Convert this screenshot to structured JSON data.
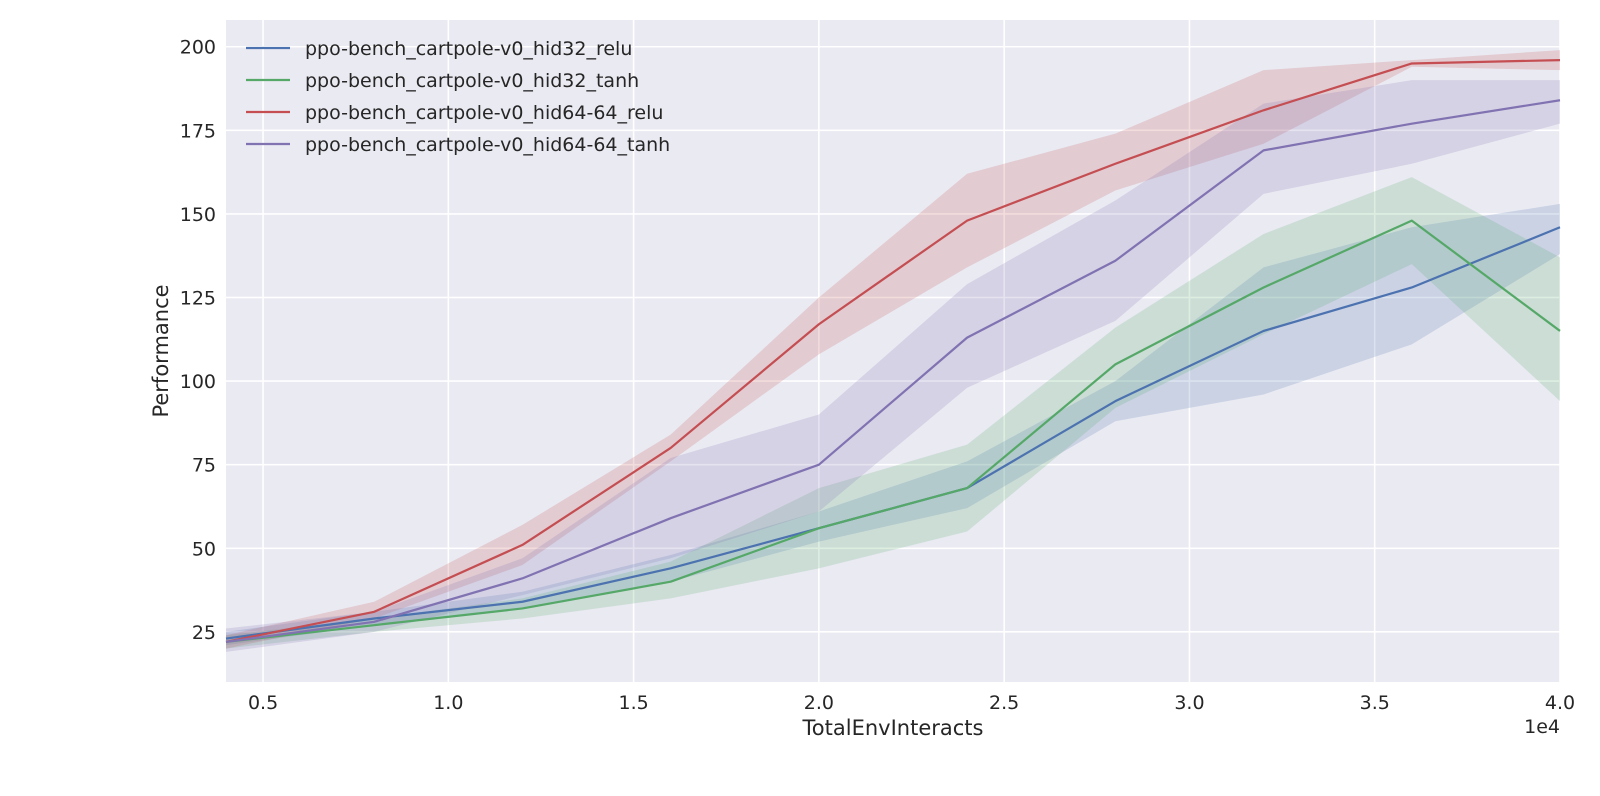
{
  "chart_data": {
    "type": "line",
    "title": "",
    "xlabel": "TotalEnvInteracts",
    "ylabel": "Performance",
    "x_offset_text": "1e4",
    "x": [
      4000,
      8000,
      12000,
      16000,
      20000,
      24000,
      28000,
      32000,
      36000,
      40000
    ],
    "xlim": [
      4000,
      40000
    ],
    "ylim": [
      10,
      208
    ],
    "x_ticks": [
      5000,
      10000,
      15000,
      20000,
      25000,
      30000,
      35000,
      40000
    ],
    "x_tick_labels": [
      "0.5",
      "1.0",
      "1.5",
      "2.0",
      "2.5",
      "3.0",
      "3.5",
      "4.0"
    ],
    "y_ticks": [
      25,
      50,
      75,
      100,
      125,
      150,
      175,
      200
    ],
    "y_tick_labels": [
      "25",
      "50",
      "75",
      "100",
      "125",
      "150",
      "175",
      "200"
    ],
    "grid": true,
    "legend_position": "upper-left",
    "background": "#EAEAF2",
    "series": [
      {
        "name": "ppo-bench_cartpole-v0_hid32_relu",
        "color": "#4C72B0",
        "values": [
          23,
          29,
          34,
          44,
          56,
          68,
          94,
          115,
          128,
          146
        ],
        "upper": [
          25,
          31,
          37,
          48,
          61,
          76,
          100,
          134,
          146,
          153
        ],
        "lower": [
          21,
          27,
          32,
          40,
          52,
          62,
          88,
          96,
          111,
          138
        ]
      },
      {
        "name": "ppo-bench_cartpole-v0_hid32_tanh",
        "color": "#55A868",
        "values": [
          22,
          27,
          32,
          40,
          56,
          68,
          105,
          128,
          148,
          115
        ],
        "upper": [
          24,
          29,
          35,
          46,
          68,
          81,
          116,
          144,
          161,
          137
        ],
        "lower": [
          20,
          25,
          29,
          35,
          44,
          55,
          92,
          114,
          135,
          94
        ]
      },
      {
        "name": "ppo-bench_cartpole-v0_hid64-64_relu",
        "color": "#C44E52",
        "values": [
          22,
          31,
          51,
          80,
          117,
          148,
          165,
          181,
          195,
          196
        ],
        "upper": [
          24,
          34,
          57,
          84,
          125,
          162,
          174,
          193,
          196,
          199
        ],
        "lower": [
          20,
          29,
          45,
          76,
          108,
          134,
          157,
          171,
          194,
          193
        ]
      },
      {
        "name": "ppo-bench_cartpole-v0_hid64-64_tanh",
        "color": "#8172B2",
        "values": [
          22,
          28,
          41,
          59,
          75,
          113,
          136,
          169,
          177,
          184
        ],
        "upper": [
          26,
          31,
          47,
          77,
          90,
          129,
          154,
          183,
          190,
          190
        ],
        "lower": [
          19,
          25,
          36,
          47,
          61,
          98,
          118,
          156,
          165,
          177
        ]
      }
    ]
  }
}
